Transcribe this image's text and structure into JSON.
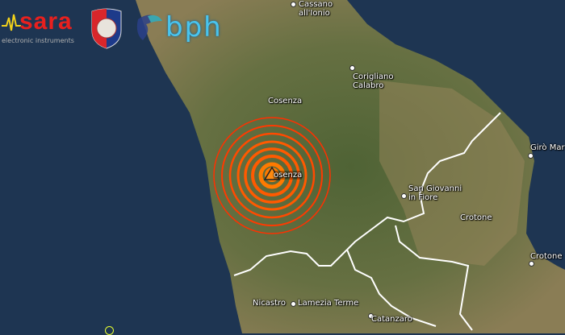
{
  "logos": {
    "sara_name": "sara",
    "sara_tagline": "electronic instruments",
    "bph_name": "bph"
  },
  "epicenter": {
    "label": "osenza",
    "marker_color": "#ff7a00",
    "ring_color": "#ff5a00"
  },
  "places": [
    {
      "name": "Cassano",
      "name2": "all'Ionio"
    },
    {
      "name": "Corigliano",
      "name2": "Calabro"
    },
    {
      "name": "Cosenza"
    },
    {
      "name": "Girò Mar"
    },
    {
      "name": "San Giovanni",
      "name2": "in Fiore"
    },
    {
      "name": "Crotone"
    },
    {
      "name": "Crotone"
    },
    {
      "name": "Nicastro"
    },
    {
      "name": "Lamezia Terme"
    },
    {
      "name": "Catanzaro"
    }
  ],
  "colors": {
    "sea": "#1e3552",
    "land": "#5f6a3e",
    "borders": "#ffffff"
  }
}
